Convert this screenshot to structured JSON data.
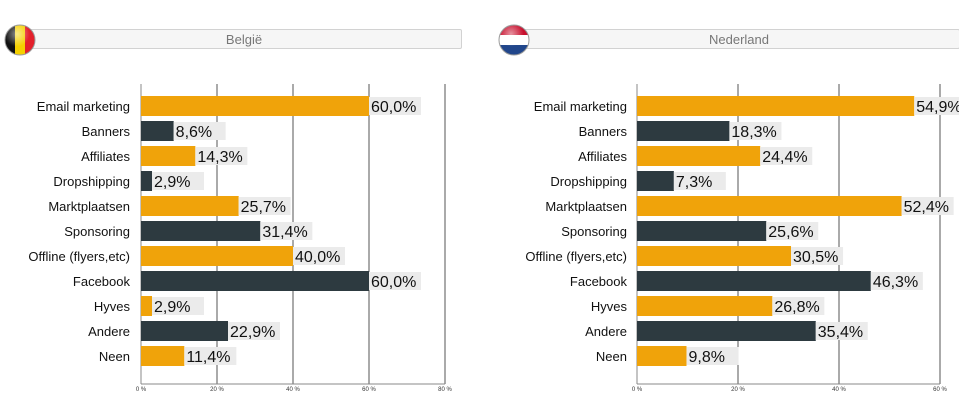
{
  "colors": {
    "orange": "#f0a30a",
    "dark": "#2d3a40",
    "label_bg": "#ebebeb",
    "grid": "#555555"
  },
  "panels": [
    {
      "title": "België",
      "flag_icon": "belgium-flag-icon"
    },
    {
      "title": "Nederland",
      "flag_icon": "netherlands-flag-icon"
    }
  ],
  "chart_data": [
    {
      "type": "bar",
      "orientation": "horizontal",
      "title": "België",
      "categories": [
        "Email marketing",
        "Banners",
        "Affiliates",
        "Dropshipping",
        "Marktplaatsen",
        "Sponsoring",
        "Offline (flyers,etc)",
        "Facebook",
        "Hyves",
        "Andere",
        "Neen"
      ],
      "values": [
        60.0,
        8.6,
        14.3,
        2.9,
        25.7,
        31.4,
        40.0,
        60.0,
        2.9,
        22.9,
        11.4
      ],
      "value_labels": [
        "60,0%",
        "8,6%",
        "14,3%",
        "2,9%",
        "25,7%",
        "31,4%",
        "40,0%",
        "60,0%",
        "2,9%",
        "22,9%",
        "11,4%"
      ],
      "bar_colors": [
        "orange",
        "dark",
        "orange",
        "dark",
        "orange",
        "dark",
        "orange",
        "dark",
        "orange",
        "dark",
        "orange"
      ],
      "xlim": [
        0,
        80
      ],
      "ticks": [
        "0 %",
        "20 %",
        "40 %",
        "60 %",
        "80 %"
      ],
      "grid": true
    },
    {
      "type": "bar",
      "orientation": "horizontal",
      "title": "Nederland",
      "categories": [
        "Email marketing",
        "Banners",
        "Affiliates",
        "Dropshipping",
        "Marktplaatsen",
        "Sponsoring",
        "Offline (flyers,etc)",
        "Facebook",
        "Hyves",
        "Andere",
        "Neen"
      ],
      "values": [
        54.9,
        18.3,
        24.4,
        7.3,
        52.4,
        25.6,
        30.5,
        46.3,
        26.8,
        35.4,
        9.8
      ],
      "value_labels": [
        "54,9%",
        "18,3%",
        "24,4%",
        "7,3%",
        "52,4%",
        "25,6%",
        "30,5%",
        "46,3%",
        "26,8%",
        "35,4%",
        "9,8%"
      ],
      "bar_colors": [
        "orange",
        "dark",
        "orange",
        "dark",
        "orange",
        "dark",
        "orange",
        "dark",
        "orange",
        "dark",
        "orange"
      ],
      "xlim": [
        0,
        60
      ],
      "ticks": [
        "0 %",
        "20 %",
        "40 %",
        "60 %"
      ],
      "grid": true
    }
  ]
}
